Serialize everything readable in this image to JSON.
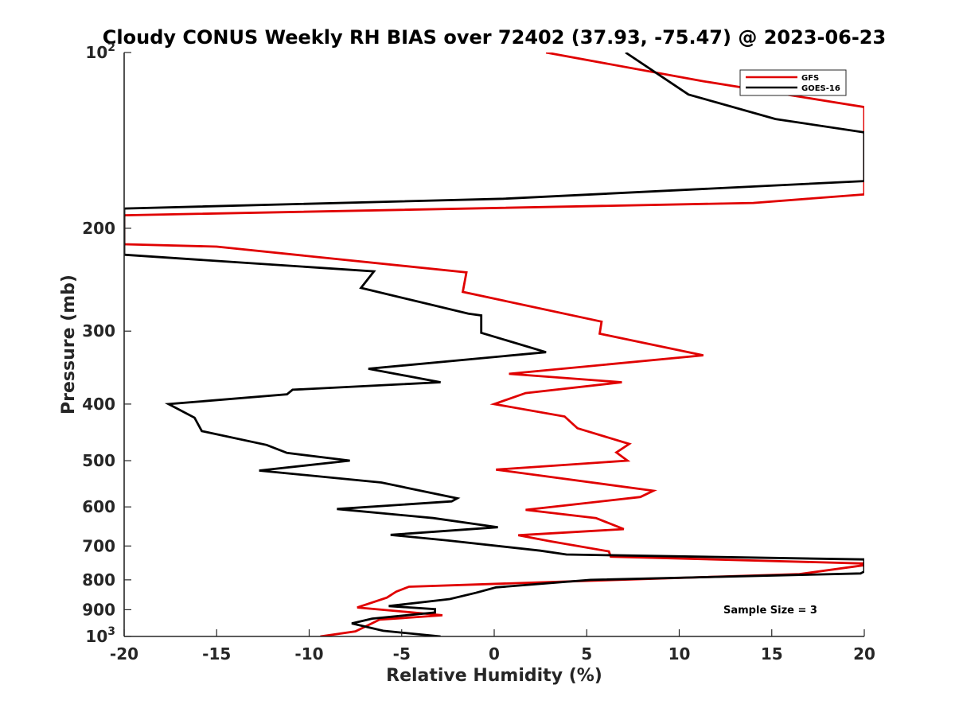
{
  "chart_data": {
    "type": "line",
    "title": "Cloudy CONUS Weekly RH BIAS over 72402 (37.93, -75.47) @ 2023-06-23",
    "xlabel": "Relative Humidity (%)",
    "ylabel": "Pressure (mb)",
    "xlim": [
      -20,
      20
    ],
    "ylim": [
      100,
      1000
    ],
    "y_scale": "log",
    "y_reversed": true,
    "x_ticks": [
      -20,
      -15,
      -10,
      -5,
      0,
      5,
      10,
      15,
      20
    ],
    "x_tick_labels": [
      "-20",
      "-15",
      "-10",
      "-5",
      "0",
      "5",
      "10",
      "15",
      "20"
    ],
    "y_ticks": [
      100,
      200,
      300,
      400,
      500,
      600,
      700,
      800,
      900,
      1000
    ],
    "y_tick_labels": [
      {
        "base": "10",
        "sup": "2"
      },
      {
        "base": "200",
        "sup": ""
      },
      {
        "base": "300",
        "sup": ""
      },
      {
        "base": "400",
        "sup": ""
      },
      {
        "base": "500",
        "sup": ""
      },
      {
        "base": "600",
        "sup": ""
      },
      {
        "base": "700",
        "sup": ""
      },
      {
        "base": "800",
        "sup": ""
      },
      {
        "base": "900",
        "sup": ""
      },
      {
        "base": "10",
        "sup": "3"
      }
    ],
    "grid": false,
    "legend_position": "top-right",
    "annotation": "Sample Size = 3",
    "series": [
      {
        "name": "GFS",
        "color": "#e00000",
        "points": [
          [
            2.8,
            100
          ],
          [
            11.3,
            112
          ],
          [
            20,
            124
          ],
          [
            20,
            175
          ],
          [
            14,
            181
          ],
          [
            -20,
            190
          ],
          [
            -20,
            213
          ],
          [
            -15,
            215
          ],
          [
            -1.5,
            238
          ],
          [
            -1.7,
            257
          ],
          [
            5.8,
            289
          ],
          [
            5.7,
            303
          ],
          [
            11.3,
            330
          ],
          [
            0.8,
            355
          ],
          [
            6.9,
            367
          ],
          [
            1.7,
            383
          ],
          [
            0,
            400
          ],
          [
            3.8,
            420
          ],
          [
            4.5,
            440
          ],
          [
            7.3,
            468
          ],
          [
            6.6,
            484
          ],
          [
            7.2,
            500
          ],
          [
            0.1,
            518
          ],
          [
            8.6,
            563
          ],
          [
            7.9,
            577
          ],
          [
            1.7,
            607
          ],
          [
            5.5,
            627
          ],
          [
            7.0,
            655
          ],
          [
            1.3,
            671
          ],
          [
            3.0,
            687
          ],
          [
            6.2,
            715
          ],
          [
            6.3,
            730
          ],
          [
            20,
            750
          ],
          [
            20,
            755
          ],
          [
            16.5,
            782
          ],
          [
            2.5,
            808
          ],
          [
            -4.6,
            822
          ],
          [
            -5.3,
            838
          ],
          [
            -5.8,
            858
          ],
          [
            -7.4,
            892
          ],
          [
            -4.4,
            910
          ],
          [
            -2.8,
            920
          ],
          [
            -6.2,
            936
          ],
          [
            -7.5,
            980
          ],
          [
            -9.4,
            1000
          ]
        ]
      },
      {
        "name": "GOES-16",
        "color": "#000000",
        "points": [
          [
            7.1,
            100
          ],
          [
            10.5,
            118
          ],
          [
            15.2,
            130
          ],
          [
            20,
            137
          ],
          [
            20,
            166
          ],
          [
            0.5,
            178
          ],
          [
            -20,
            185
          ],
          [
            -20,
            222
          ],
          [
            -6.5,
            237
          ],
          [
            -7.2,
            253
          ],
          [
            -1.4,
            280
          ],
          [
            -0.7,
            282
          ],
          [
            -0.7,
            302
          ],
          [
            2.8,
            326
          ],
          [
            -6.8,
            348
          ],
          [
            -2.9,
            367
          ],
          [
            -10.9,
            378
          ],
          [
            -11.2,
            385
          ],
          [
            -17.6,
            400
          ],
          [
            -16.2,
            422
          ],
          [
            -15.8,
            445
          ],
          [
            -12.3,
            470
          ],
          [
            -11.2,
            485
          ],
          [
            -7.8,
            500
          ],
          [
            -12.7,
            520
          ],
          [
            -6.1,
            545
          ],
          [
            -2.0,
            580
          ],
          [
            -2.3,
            587
          ],
          [
            -8.5,
            605
          ],
          [
            -3.3,
            627
          ],
          [
            0.2,
            650
          ],
          [
            -5.6,
            670
          ],
          [
            -2.5,
            685
          ],
          [
            2.5,
            713
          ],
          [
            3.9,
            724
          ],
          [
            20,
            738
          ],
          [
            20,
            774
          ],
          [
            19.8,
            780
          ],
          [
            5.2,
            800
          ],
          [
            0.1,
            824
          ],
          [
            -1.0,
            842
          ],
          [
            -2.4,
            863
          ],
          [
            -5.7,
            887
          ],
          [
            -3.2,
            898
          ],
          [
            -3.2,
            910
          ],
          [
            -6.6,
            932
          ],
          [
            -7.7,
            950
          ],
          [
            -6.0,
            978
          ],
          [
            -2.9,
            1000
          ]
        ]
      }
    ]
  }
}
